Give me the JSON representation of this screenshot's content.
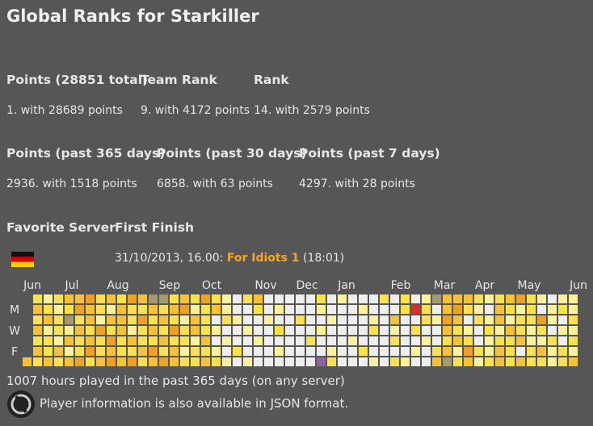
{
  "title": "Global Ranks for Starkiller",
  "ranks": [
    {
      "header": "Points (28851 total)",
      "value": "1. with 28689 points"
    },
    {
      "header": "Team Rank",
      "value": "9. with 4172 points"
    },
    {
      "header": "Rank",
      "value": "14. with 2579 points"
    }
  ],
  "ranks_recent": [
    {
      "header": "Points (past 365 days)",
      "value": "2936. with 1518 points"
    },
    {
      "header": "Points (past 30 days)",
      "value": "6858. with 63 points"
    },
    {
      "header": "Points (past 7 days)",
      "value": "4297. with 28 points"
    }
  ],
  "favorite_server_header": "Favorite Server",
  "first_finish_header": "First Finish",
  "first_finish": {
    "date": "31/10/2013, 16.00:",
    "map": "For Idiots 1",
    "time": "(18:01)"
  },
  "calendar": {
    "months": [
      "Jun",
      "Jul",
      "Aug",
      "Sep",
      "Oct",
      "Nov",
      "Dec",
      "Jan",
      "Feb",
      "Mar",
      "Apr",
      "May",
      "Jun"
    ],
    "days": [
      "M",
      "W",
      "F"
    ],
    "palette": [
      "#eeeeee",
      "#fdf29c",
      "#fbe14a",
      "#f6c234",
      "#f0a21e",
      "#e22b2b",
      "#a39a72",
      "#8c64a0"
    ],
    "rows": [
      [
        null,
        2,
        1,
        2,
        3,
        3,
        4,
        2,
        3,
        2,
        4,
        3,
        6,
        6,
        2,
        3,
        2,
        4,
        2,
        1,
        0,
        2,
        3,
        0,
        0,
        0,
        0,
        0,
        2,
        0,
        1,
        0,
        0,
        0,
        2,
        0,
        2,
        0,
        1,
        6,
        3,
        3,
        3,
        2,
        1,
        2,
        3,
        4,
        2,
        1,
        0,
        1,
        1
      ],
      [
        null,
        3,
        2,
        1,
        2,
        4,
        3,
        2,
        1,
        3,
        2,
        2,
        3,
        2,
        3,
        4,
        1,
        2,
        3,
        1,
        0,
        0,
        2,
        0,
        1,
        0,
        0,
        0,
        1,
        0,
        0,
        0,
        1,
        0,
        0,
        0,
        2,
        5,
        2,
        0,
        3,
        4,
        2,
        1,
        0,
        3,
        2,
        1,
        2,
        0,
        1,
        2,
        1
      ],
      [
        null,
        2,
        3,
        2,
        6,
        2,
        3,
        1,
        3,
        3,
        2,
        4,
        2,
        3,
        2,
        1,
        3,
        2,
        0,
        2,
        1,
        0,
        0,
        1,
        0,
        0,
        2,
        0,
        0,
        1,
        0,
        0,
        0,
        1,
        0,
        3,
        0,
        0,
        2,
        1,
        4,
        3,
        0,
        2,
        1,
        3,
        1,
        2,
        2,
        4,
        1,
        0,
        2
      ],
      [
        null,
        3,
        1,
        2,
        1,
        3,
        2,
        4,
        2,
        3,
        1,
        2,
        3,
        2,
        4,
        2,
        3,
        2,
        1,
        0,
        0,
        1,
        0,
        0,
        2,
        0,
        0,
        0,
        1,
        0,
        0,
        0,
        0,
        2,
        0,
        1,
        0,
        2,
        0,
        0,
        3,
        2,
        1,
        0,
        2,
        1,
        3,
        2,
        1,
        2,
        0,
        1,
        1
      ],
      [
        null,
        2,
        2,
        1,
        3,
        2,
        3,
        2,
        4,
        2,
        3,
        2,
        2,
        3,
        2,
        2,
        1,
        3,
        0,
        1,
        0,
        0,
        1,
        0,
        0,
        0,
        0,
        2,
        0,
        0,
        0,
        1,
        0,
        0,
        0,
        2,
        0,
        0,
        1,
        0,
        2,
        3,
        2,
        0,
        1,
        2,
        2,
        3,
        1,
        1,
        2,
        0,
        2
      ],
      [
        null,
        3,
        2,
        3,
        1,
        2,
        4,
        2,
        3,
        2,
        2,
        3,
        4,
        2,
        3,
        1,
        2,
        2,
        1,
        0,
        2,
        0,
        0,
        0,
        1,
        0,
        0,
        0,
        0,
        1,
        0,
        0,
        2,
        0,
        0,
        0,
        0,
        1,
        0,
        2,
        3,
        1,
        4,
        2,
        1,
        3,
        2,
        0,
        2,
        3,
        1,
        2,
        1
      ],
      [
        3,
        2,
        3,
        2,
        3,
        4,
        2,
        3,
        4,
        3,
        4,
        2,
        3,
        4,
        3,
        2,
        2,
        3,
        2,
        1,
        0,
        1,
        0,
        0,
        0,
        0,
        0,
        0,
        7,
        2,
        0,
        0,
        0,
        1,
        0,
        2,
        1,
        0,
        0,
        3,
        6,
        2,
        3,
        1,
        2,
        3,
        2,
        3,
        2,
        2,
        1,
        2,
        3
      ]
    ]
  },
  "hours": "1007 hours played in the past 365 days (on any server)",
  "json_note": "Player information is also available in JSON format."
}
